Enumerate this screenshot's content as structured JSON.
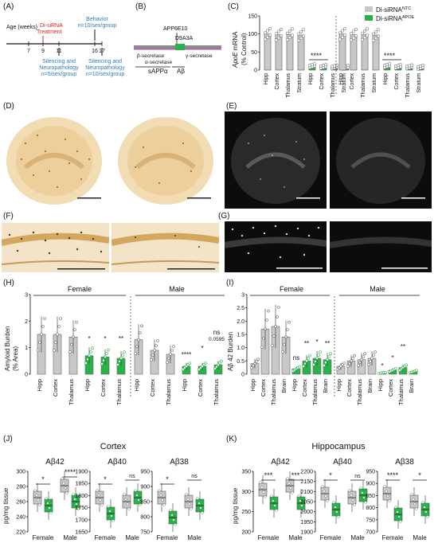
{
  "panels": {
    "A": "(A)",
    "B": "(B)",
    "C": "(C)",
    "D": "(D)",
    "E": "(E)",
    "F": "(F)",
    "G": "(G)",
    "H": "(H)",
    "I": "(I)",
    "J": "(J)",
    "K": "(K)"
  },
  "timeline": {
    "axis_label": "Age (weeks)",
    "ticks": [
      "7",
      "9",
      "11",
      "16",
      "17"
    ],
    "treatment": [
      "Di-siRNA",
      "Treatment"
    ],
    "behavior": [
      "Behavior",
      "n=10/sex/group"
    ],
    "silencing_a": [
      "Silencing and",
      "Neuropathology",
      "n=5/sex/group"
    ],
    "silencing_b": [
      "Silencing and",
      "Neuropathology",
      "n=10/sex/group"
    ],
    "colors": {
      "treatment": "#d62728",
      "behavior": "#2b7bba"
    }
  },
  "app_diagram": {
    "app6e10": "APP6E10",
    "d9a3a": "D9A3A",
    "beta": "β-secretase",
    "alpha": "α-secretase",
    "gamma": "γ-secretase",
    "sappa": "sAPPα",
    "abeta": "Aβ"
  },
  "legend": {
    "ntc_prefix": "Di-siRNA",
    "ntc_sup": "NTC",
    "apoe_prefix": "Di-siRNA",
    "apoe_sup": "APOE",
    "ntc_color": "#c8c8c8",
    "apoe_color": "#2ab24a"
  },
  "panel_c": {
    "ylabel_pre": "ApoE",
    "ylabel_post": " mRNA",
    "ylabel2": "(% Control)",
    "yticks": [
      "150",
      "100",
      "50",
      "0"
    ],
    "categories": [
      "Hipp",
      "Cortex",
      "Thalamus",
      "Stratum",
      "Hipp",
      "Cortex",
      "Thalamus",
      "Stratum"
    ],
    "sig": [
      "****",
      "****"
    ]
  },
  "panel_h": {
    "ylabel": [
      "Amyloid Burden",
      "(% Area)"
    ],
    "yticks": [
      "3",
      "2",
      "1",
      "0"
    ],
    "female": "Female",
    "male": "Male",
    "categories": [
      "Hipp",
      "Cortex",
      "Thalamus",
      "Hipp",
      "Cortex",
      "Thalamus",
      "Hipp",
      "Cortex",
      "Thalamus",
      "Hipp",
      "Cortex",
      "Thalamus"
    ],
    "sig": [
      "*",
      "*",
      "**",
      "****",
      "*",
      "ns",
      "0.0595"
    ]
  },
  "panel_i": {
    "ylabel": "Aβ 42 Burden",
    "yticks": [
      "3",
      "2.5",
      "2.0",
      "1.5",
      "1.0",
      "0.5",
      "0"
    ],
    "female": "Female",
    "male": "Male",
    "categories": [
      "Hipp",
      "Cortex",
      "Thalamus",
      "Brain",
      "Hipp",
      "Cortex",
      "Thalamus",
      "Brain",
      "Hipp",
      "Cortex",
      "Thalamus",
      "Brain",
      "Hipp",
      "Cortex",
      "Thalamus",
      "Brain"
    ],
    "sig": [
      "ns",
      "**",
      "*",
      "**",
      "*",
      "*",
      "**"
    ]
  },
  "panel_j": {
    "title": "Cortex",
    "ylabel": "pg/mg tissue",
    "subtitles": [
      "Aβ42",
      "Aβ40",
      "Aβ38"
    ],
    "yticks_a": [
      "300",
      "280",
      "260",
      "240",
      "220"
    ],
    "yticks_b": [
      "1900",
      "1850",
      "1800",
      "1750",
      "1700",
      "1650"
    ],
    "yticks_c": [
      "950",
      "900",
      "850",
      "800",
      "750"
    ],
    "xcats": [
      "Female",
      "Male"
    ],
    "sig": [
      "*",
      "****",
      "*",
      "ns",
      "*",
      "ns"
    ]
  },
  "panel_k": {
    "title": "Hippocampus",
    "ylabel": "pg/mg tissue",
    "subtitles": [
      "Aβ42",
      "Aβ40",
      "Aβ38"
    ],
    "yticks_a": [
      "350",
      "300",
      "250",
      "200"
    ],
    "yticks_b": [
      "2200",
      "2150",
      "2100",
      "2050",
      "2000",
      "1950",
      "1900"
    ],
    "yticks_c": [
      "950",
      "900",
      "850",
      "800",
      "750",
      "700"
    ],
    "xcats": [
      "Female",
      "Male"
    ],
    "sig": [
      "***",
      "***",
      "*",
      "ns",
      "****",
      "*"
    ]
  }
}
